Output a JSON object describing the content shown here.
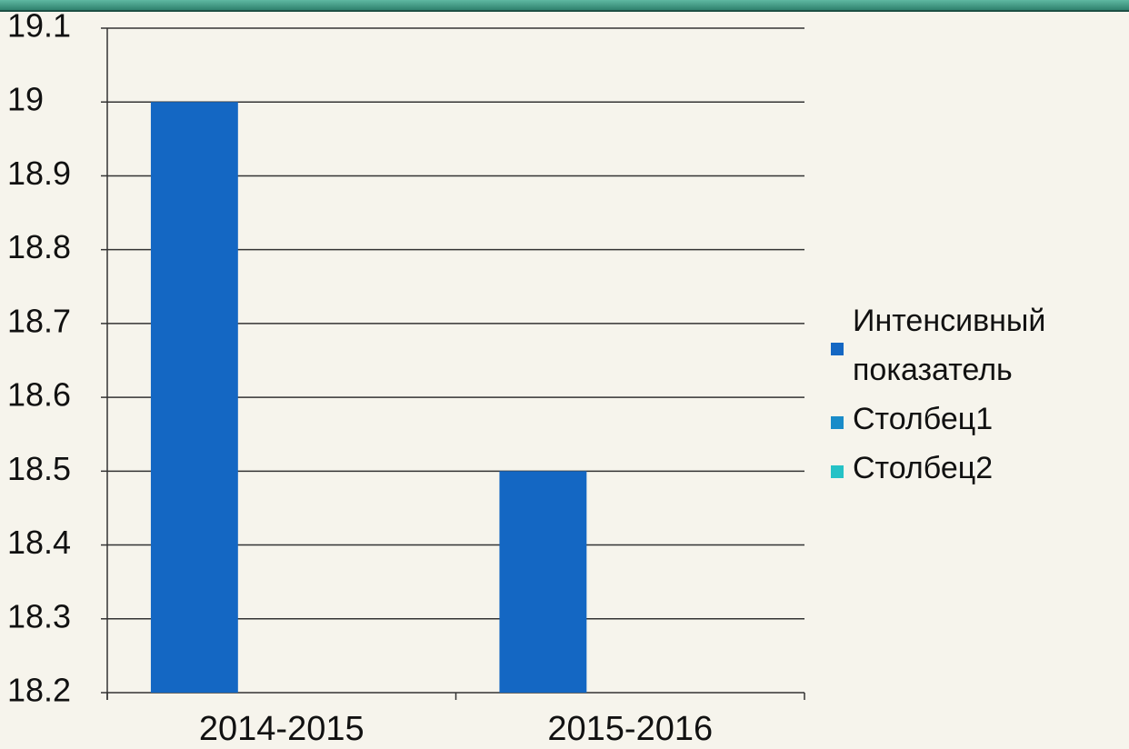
{
  "chart_data": {
    "type": "bar",
    "categories": [
      "2014-2015",
      "2015-2016"
    ],
    "series": [
      {
        "name": "Интенсивный показатель",
        "color": "#1467c3",
        "values": [
          19,
          18.5
        ]
      },
      {
        "name": "Столбец1",
        "color": "#1a8cc9",
        "values": [
          null,
          null
        ]
      },
      {
        "name": "Столбец2",
        "color": "#25c2c6",
        "values": [
          null,
          null
        ]
      }
    ],
    "ylim": [
      18.2,
      19.1
    ],
    "yticks": [
      18.2,
      18.3,
      18.4,
      18.5,
      18.6,
      18.7,
      18.8,
      18.9,
      19,
      19.1
    ],
    "grid": true,
    "legend": "right"
  }
}
